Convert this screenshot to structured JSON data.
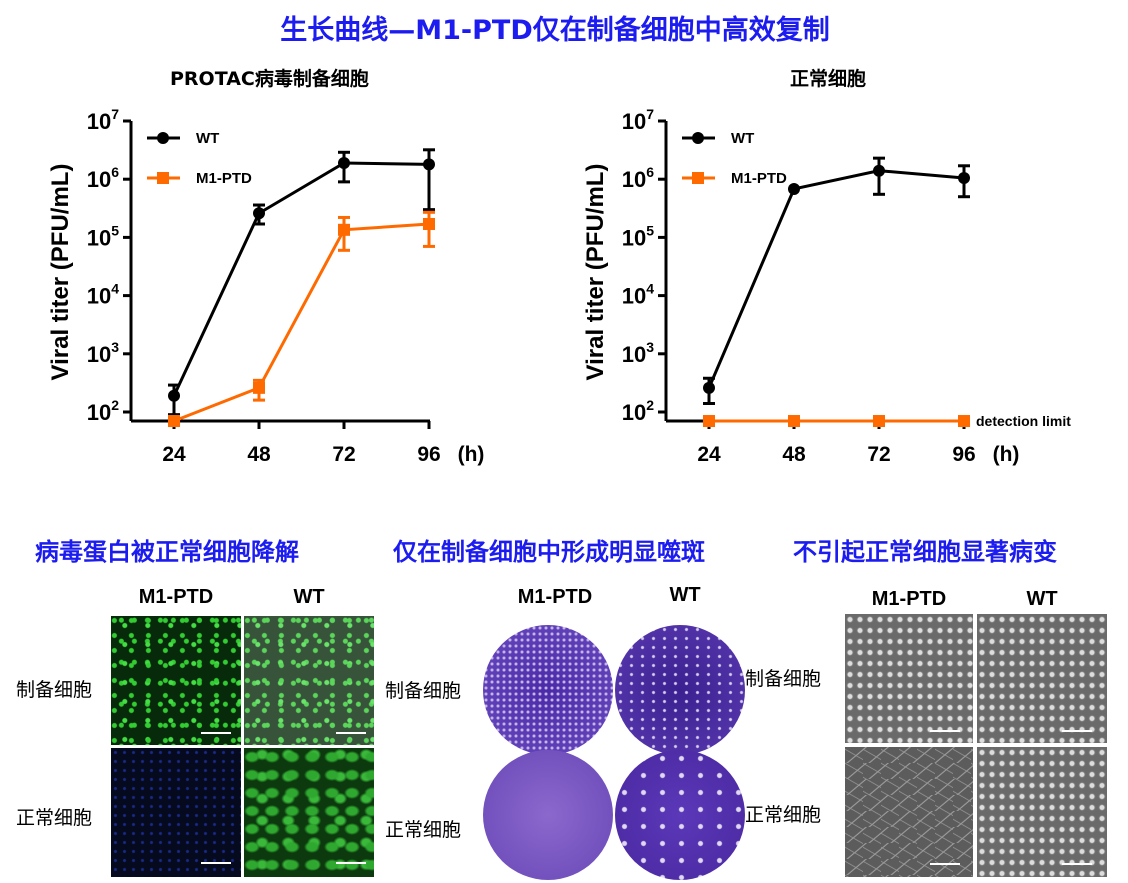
{
  "title": "生长曲线—M1-PTD仅在制备细胞中高效复制",
  "chart_data": [
    {
      "type": "line",
      "title": "PROTAC病毒制备细胞",
      "xlabel": "(h)",
      "ylabel": "Viral titer (PFU/mL)",
      "yscale": "log",
      "ylim": [
        70,
        10000000
      ],
      "x": [
        24,
        48,
        72,
        96
      ],
      "xticks": [
        "24",
        "48",
        "72",
        "96"
      ],
      "yticks": [
        "10^2",
        "10^3",
        "10^4",
        "10^5",
        "10^6",
        "10^7"
      ],
      "legend": "top-left",
      "series": [
        {
          "name": "WT",
          "color": "#000000",
          "marker": "circle",
          "values": [
            190,
            260000,
            1900000,
            1800000
          ],
          "err_low": [
            90,
            170000,
            900000,
            300000
          ],
          "err_high": [
            290,
            360000,
            2900000,
            3200000
          ]
        },
        {
          "name": "M1-PTD",
          "color": "#ff6a00",
          "marker": "square",
          "values": [
            70,
            260,
            135000,
            170000
          ],
          "err_low": [
            70,
            160,
            60000,
            70000
          ],
          "err_high": [
            70,
            350,
            220000,
            270000
          ]
        }
      ]
    },
    {
      "type": "line",
      "title": "正常细胞",
      "xlabel": "(h)",
      "ylabel": "Viral titer (PFU/mL)",
      "yscale": "log",
      "ylim": [
        70,
        10000000
      ],
      "x": [
        24,
        48,
        72,
        96
      ],
      "xticks": [
        "24",
        "48",
        "72",
        "96"
      ],
      "yticks": [
        "10^2",
        "10^3",
        "10^4",
        "10^5",
        "10^6",
        "10^7"
      ],
      "legend": "top-left",
      "annotation": "detection limit",
      "series": [
        {
          "name": "WT",
          "color": "#000000",
          "marker": "circle",
          "values": [
            260,
            680000,
            1400000,
            1050000
          ],
          "err_low": [
            140,
            680000,
            550000,
            500000
          ],
          "err_high": [
            380,
            680000,
            2300000,
            1700000
          ]
        },
        {
          "name": "M1-PTD",
          "color": "#ff6a00",
          "marker": "square",
          "values": [
            70,
            70,
            70,
            70
          ],
          "err_low": [
            70,
            70,
            70,
            70
          ],
          "err_high": [
            70,
            70,
            70,
            70
          ]
        }
      ]
    }
  ],
  "panels": {
    "left": {
      "title": "病毒蛋白被正常细胞降解",
      "cols": [
        "M1-PTD",
        "WT"
      ],
      "rows": [
        "制备细胞",
        "正常细胞"
      ]
    },
    "middle": {
      "title": "仅在制备细胞中形成明显噬斑",
      "cols": [
        "M1-PTD",
        "WT"
      ],
      "rows": [
        "制备细胞",
        "正常细胞"
      ]
    },
    "right": {
      "title": "不引起正常细胞显著病变",
      "cols": [
        "M1-PTD",
        "WT"
      ]
    }
  }
}
